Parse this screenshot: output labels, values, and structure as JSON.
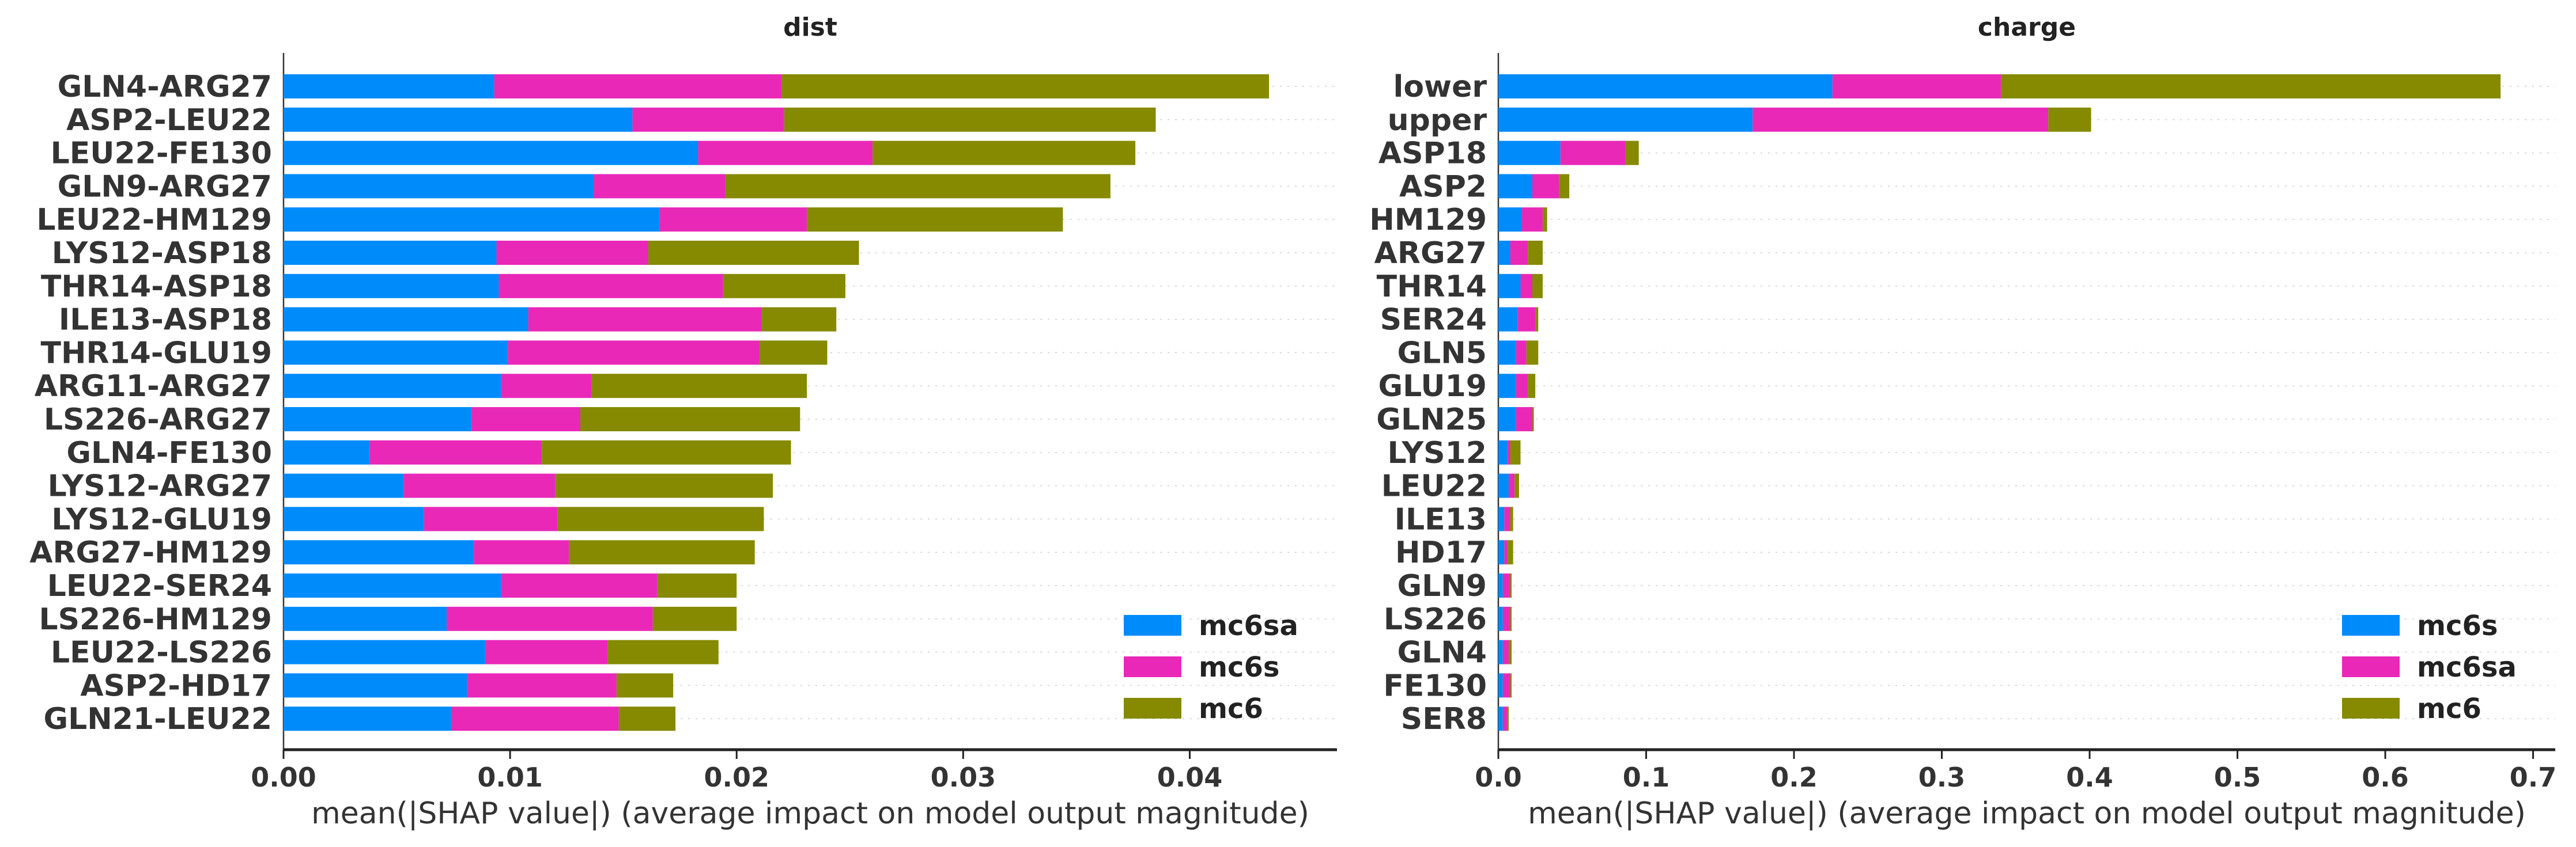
{
  "colors": {
    "blue": "#008bfb",
    "magenta": "#e928b8",
    "olive": "#858a00"
  },
  "chart_data": [
    {
      "type": "bar",
      "stacked": true,
      "orientation": "horizontal",
      "title": "dist",
      "xlabel": "mean(|SHAP value|) (average impact on model output magnitude)",
      "ylabel": "",
      "xlim": [
        0,
        0.0465
      ],
      "xticks": [
        0.0,
        0.01,
        0.02,
        0.03,
        0.04
      ],
      "xtick_labels": [
        "0.00",
        "0.01",
        "0.02",
        "0.03",
        "0.04"
      ],
      "grid": false,
      "legend_position": "lower-right",
      "categories": [
        "GLN4-ARG27",
        "ASP2-LEU22",
        "LEU22-FE130",
        "GLN9-ARG27",
        "LEU22-HM129",
        "LYS12-ASP18",
        "THR14-ASP18",
        "ILE13-ASP18",
        "THR14-GLU19",
        "ARG11-ARG27",
        "LS226-ARG27",
        "GLN4-FE130",
        "LYS12-ARG27",
        "LYS12-GLU19",
        "ARG27-HM129",
        "LEU22-SER24",
        "LS226-HM129",
        "LEU22-LS226",
        "ASP2-HD17",
        "GLN21-LEU22"
      ],
      "series": [
        {
          "name": "mc6sa",
          "color": "#008bfb",
          "values": [
            0.0093,
            0.0154,
            0.0183,
            0.0137,
            0.0166,
            0.0094,
            0.0095,
            0.0108,
            0.0099,
            0.0096,
            0.0083,
            0.0038,
            0.0053,
            0.0062,
            0.0084,
            0.0096,
            0.0072,
            0.0089,
            0.0081,
            0.0074
          ]
        },
        {
          "name": "mc6s",
          "color": "#e928b8",
          "values": [
            0.0127,
            0.0067,
            0.0077,
            0.0058,
            0.0065,
            0.0067,
            0.0099,
            0.0103,
            0.0111,
            0.004,
            0.0048,
            0.0076,
            0.0067,
            0.0059,
            0.0042,
            0.0069,
            0.0091,
            0.0054,
            0.0066,
            0.0074
          ]
        },
        {
          "name": "mc6",
          "color": "#858a00",
          "values": [
            0.0215,
            0.0164,
            0.0116,
            0.017,
            0.0113,
            0.0093,
            0.0054,
            0.0033,
            0.003,
            0.0095,
            0.0097,
            0.011,
            0.0096,
            0.0091,
            0.0082,
            0.0035,
            0.0037,
            0.0049,
            0.0025,
            0.0025
          ]
        }
      ]
    },
    {
      "type": "bar",
      "stacked": true,
      "orientation": "horizontal",
      "title": "charge",
      "xlabel": "mean(|SHAP value|) (average impact on model output magnitude)",
      "ylabel": "",
      "xlim": [
        0,
        0.715
      ],
      "xticks": [
        0.0,
        0.1,
        0.2,
        0.3,
        0.4,
        0.5,
        0.6,
        0.7
      ],
      "xtick_labels": [
        "0.0",
        "0.1",
        "0.2",
        "0.3",
        "0.4",
        "0.5",
        "0.6",
        "0.7"
      ],
      "grid": false,
      "legend_position": "lower-right",
      "categories": [
        "lower",
        "upper",
        "ASP18",
        "ASP2",
        "HM129",
        "ARG27",
        "THR14",
        "SER24",
        "GLN5",
        "GLU19",
        "GLN25",
        "LYS12",
        "LEU22",
        "ILE13",
        "HD17",
        "GLN9",
        "LS226",
        "GLN4",
        "FE130",
        "SER8"
      ],
      "series": [
        {
          "name": "mc6s",
          "color": "#008bfb",
          "values": [
            0.226,
            0.172,
            0.042,
            0.023,
            0.016,
            0.008,
            0.015,
            0.013,
            0.012,
            0.012,
            0.012,
            0.006,
            0.007,
            0.004,
            0.004,
            0.003,
            0.003,
            0.003,
            0.003,
            0.003
          ]
        },
        {
          "name": "mc6sa",
          "color": "#e928b8",
          "values": [
            0.114,
            0.2,
            0.044,
            0.018,
            0.014,
            0.012,
            0.008,
            0.012,
            0.007,
            0.008,
            0.011,
            0.002,
            0.004,
            0.004,
            0.002,
            0.005,
            0.005,
            0.004,
            0.005,
            0.003
          ]
        },
        {
          "name": "mc6",
          "color": "#858a00",
          "values": [
            0.338,
            0.029,
            0.009,
            0.007,
            0.003,
            0.01,
            0.007,
            0.002,
            0.008,
            0.005,
            0.001,
            0.007,
            0.003,
            0.002,
            0.004,
            0.001,
            0.001,
            0.002,
            0.001,
            0.001
          ]
        }
      ]
    }
  ]
}
